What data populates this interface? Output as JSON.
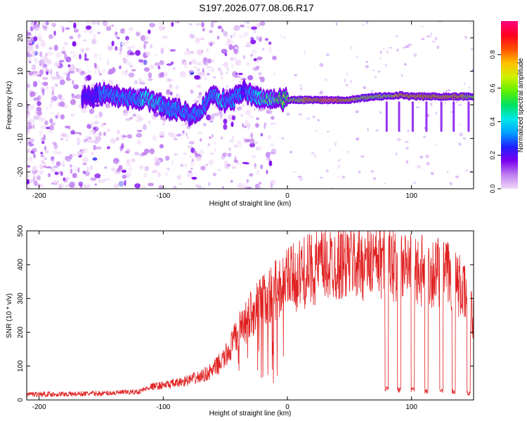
{
  "figure_title": "S197.2026.077.08.06.R17",
  "chart_data": [
    {
      "type": "heatmap",
      "title": "S197.2026.077.08.06.R17",
      "xlabel": "Height of straight line (km)",
      "ylabel": "Frequency (Hz)",
      "xlim": [
        -210,
        150
      ],
      "ylim": [
        -25,
        25
      ],
      "xticks": [
        -200,
        -100,
        0,
        100
      ],
      "xtick_labels": [
        "-200",
        "-100",
        "0",
        "100"
      ],
      "yticks": [
        -20,
        -10,
        0,
        10,
        20
      ],
      "ytick_labels": [
        "-20",
        "-10",
        "0",
        "10",
        "20"
      ],
      "colorbar": {
        "label": "Normalized spectral amplitude",
        "range": [
          0,
          1
        ],
        "ticks": [
          0.0,
          0.2,
          0.4,
          0.6,
          0.8
        ],
        "tick_labels": [
          "0.0",
          "0.2",
          "0.4",
          "0.6",
          "0.8"
        ],
        "colormap": [
          "#f0d8f8",
          "#c080f0",
          "#7a00f0",
          "#2020ff",
          "#00a0ff",
          "#00e8e8",
          "#00e060",
          "#60f000",
          "#d0f000",
          "#ffc000",
          "#ff5000",
          "#ff0020",
          "#ff0080"
        ]
      },
      "ridge": {
        "x": [
          -165,
          -155,
          -145,
          -135,
          -125,
          -115,
          -105,
          -95,
          -85,
          -75,
          -70,
          -60,
          -55,
          -45,
          -40,
          -35,
          -30,
          -25,
          -20,
          -10,
          0,
          10,
          20,
          30,
          40,
          50,
          60,
          70,
          80,
          90,
          100,
          110,
          120,
          130,
          140,
          150
        ],
        "freq": [
          2.0,
          3.0,
          3.0,
          2.0,
          1.5,
          2.0,
          0.5,
          -1.0,
          -2.0,
          -3.0,
          -2.0,
          3.5,
          1.5,
          1.0,
          3.0,
          4.0,
          3.0,
          2.0,
          2.0,
          1.5,
          1.5,
          1.5,
          1.5,
          1.5,
          1.5,
          1.5,
          2.0,
          2.5,
          2.5,
          3.0,
          2.5,
          2.5,
          2.5,
          2.5,
          2.5,
          2.5
        ],
        "amplitude": [
          0.35,
          0.4,
          0.45,
          0.45,
          0.5,
          0.55,
          0.55,
          0.5,
          0.5,
          0.45,
          0.45,
          0.5,
          0.55,
          0.5,
          0.45,
          0.4,
          0.45,
          0.55,
          0.6,
          0.65,
          0.7,
          0.75,
          0.85,
          0.9,
          0.9,
          0.8,
          0.75,
          0.7,
          0.75,
          0.8,
          0.8,
          0.8,
          0.8,
          0.8,
          0.8,
          0.7
        ]
      }
    },
    {
      "type": "line",
      "xlabel": "Height of straight line (km)",
      "ylabel": "SNR (10 * v/v)",
      "xlim": [
        -210,
        150
      ],
      "ylim": [
        0,
        500
      ],
      "xticks": [
        -200,
        -100,
        0,
        100
      ],
      "xtick_labels": [
        "-200",
        "-100",
        "0",
        "100"
      ],
      "yticks": [
        0,
        100,
        200,
        300,
        400,
        500
      ],
      "ytick_labels": [
        "0",
        "100",
        "200",
        "300",
        "400",
        "500"
      ],
      "line_color": "#e02020",
      "envelope": {
        "x": [
          -210,
          -180,
          -150,
          -120,
          -110,
          -90,
          -70,
          -60,
          -50,
          -40,
          -30,
          -20,
          -10,
          0,
          10,
          20,
          30,
          40,
          50,
          60,
          70,
          80,
          90,
          100,
          110,
          120,
          130,
          140,
          145,
          150
        ],
        "snr": [
          18,
          18,
          20,
          25,
          40,
          50,
          70,
          90,
          130,
          200,
          260,
          300,
          330,
          360,
          380,
          400,
          410,
          420,
          420,
          420,
          420,
          420,
          410,
          400,
          390,
          390,
          380,
          340,
          300,
          250
        ]
      },
      "dropouts": [
        {
          "x": 80,
          "snr": 35
        },
        {
          "x": 90,
          "snr": 30
        },
        {
          "x": 101,
          "snr": 30
        },
        {
          "x": 112,
          "snr": 25
        },
        {
          "x": 124,
          "snr": 25
        },
        {
          "x": 134,
          "snr": 25
        },
        {
          "x": 146,
          "snr": 20
        }
      ]
    }
  ]
}
